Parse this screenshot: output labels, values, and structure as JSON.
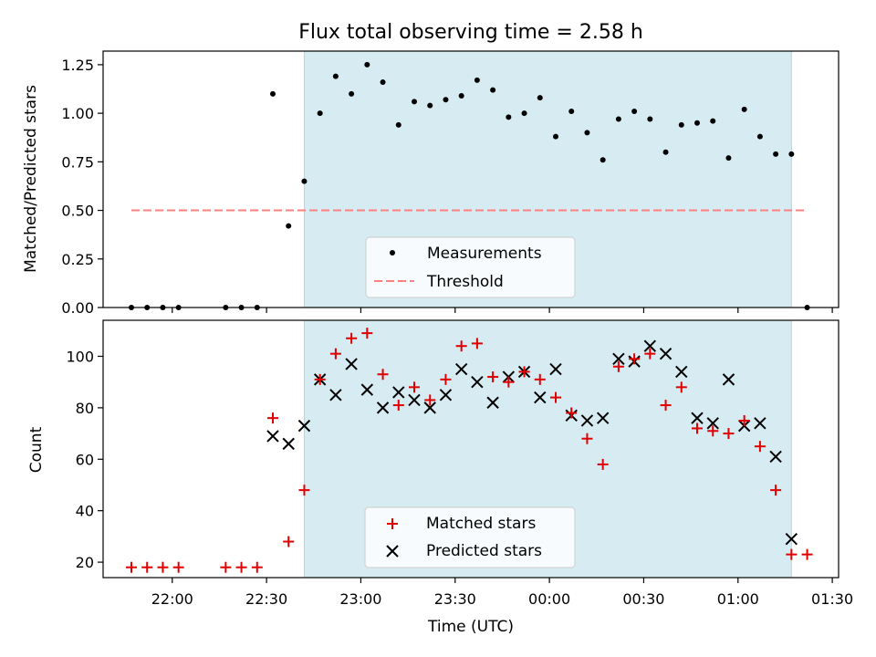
{
  "colors": {
    "measurement": "#000000",
    "threshold": "#ff8080",
    "matched": "#e00000",
    "predicted": "#000000",
    "shaded_region": "#add8e6"
  },
  "chart_data": [
    {
      "type": "scatter",
      "title": "Flux total observing time = 2.58 h",
      "xlabel": "",
      "ylabel": "Matched/Predicted stars",
      "ylim": [
        0,
        1.32
      ],
      "yticks": [
        "0.00",
        "0.25",
        "0.50",
        "0.75",
        "1.00",
        "1.25"
      ],
      "xlim": [
        "21:38",
        "23:58+1:32"
      ],
      "shaded_span": [
        "22:42",
        "01:17"
      ],
      "legend_position": "lower center",
      "series": [
        {
          "name": "Measurements",
          "kind": "points",
          "x": [
            "21:47",
            "21:52",
            "21:57",
            "22:02",
            "22:17",
            "22:22",
            "22:27",
            "22:32",
            "22:37",
            "22:42",
            "22:47",
            "22:52",
            "22:57",
            "23:02",
            "23:07",
            "23:12",
            "23:17",
            "23:22",
            "23:27",
            "23:32",
            "23:37",
            "23:42",
            "23:47",
            "23:52",
            "23:57",
            "00:02",
            "00:07",
            "00:12",
            "00:17",
            "00:22",
            "00:27",
            "00:32",
            "00:37",
            "00:42",
            "00:47",
            "00:52",
            "00:57",
            "01:02",
            "01:07",
            "01:12",
            "01:17",
            "01:22"
          ],
          "y": [
            0,
            0,
            0,
            0,
            0,
            0,
            0,
            1.1,
            0.42,
            0.65,
            1.0,
            1.19,
            1.1,
            1.25,
            1.16,
            0.94,
            1.06,
            1.04,
            1.07,
            1.09,
            1.17,
            1.12,
            0.98,
            1.0,
            1.08,
            0.88,
            1.01,
            0.9,
            0.76,
            0.97,
            1.01,
            0.97,
            0.8,
            0.94,
            0.95,
            0.96,
            0.77,
            1.02,
            0.88,
            0.79,
            0.79,
            0.0
          ]
        },
        {
          "name": "Threshold",
          "kind": "dashed-line",
          "x": [
            "21:47",
            "01:22"
          ],
          "y": [
            0.5,
            0.5
          ]
        }
      ]
    },
    {
      "type": "scatter",
      "title": "",
      "xlabel": "Time (UTC)",
      "ylabel": "Count",
      "ylim": [
        14,
        114
      ],
      "yticks": [
        "20",
        "40",
        "60",
        "80",
        "100"
      ],
      "xticks": [
        "22:00",
        "22:30",
        "23:00",
        "23:30",
        "00:00",
        "00:30",
        "01:00",
        "01:30"
      ],
      "shaded_span": [
        "22:42",
        "01:17"
      ],
      "legend_position": "lower center",
      "series": [
        {
          "name": "Matched stars",
          "marker": "+",
          "x": [
            "21:47",
            "21:52",
            "21:57",
            "22:02",
            "22:17",
            "22:22",
            "22:27",
            "22:32",
            "22:37",
            "22:42",
            "22:47",
            "22:52",
            "22:57",
            "23:02",
            "23:07",
            "23:12",
            "23:17",
            "23:22",
            "23:27",
            "23:32",
            "23:37",
            "23:42",
            "23:47",
            "23:52",
            "23:57",
            "00:02",
            "00:07",
            "00:12",
            "00:17",
            "00:22",
            "00:27",
            "00:32",
            "00:37",
            "00:42",
            "00:47",
            "00:52",
            "00:57",
            "01:02",
            "01:07",
            "01:12",
            "01:17",
            "01:22"
          ],
          "y": [
            18,
            18,
            18,
            18,
            18,
            18,
            18,
            76,
            28,
            48,
            91,
            101,
            107,
            109,
            93,
            81,
            88,
            83,
            91,
            104,
            105,
            92,
            90,
            94,
            91,
            84,
            78,
            68,
            58,
            96,
            99,
            101,
            81,
            88,
            72,
            71,
            70,
            75,
            65,
            48,
            23,
            23
          ]
        },
        {
          "name": "Predicted stars",
          "marker": "x",
          "x": [
            "22:32",
            "22:37",
            "22:42",
            "22:47",
            "22:52",
            "22:57",
            "23:02",
            "23:07",
            "23:12",
            "23:17",
            "23:22",
            "23:27",
            "23:32",
            "23:37",
            "23:42",
            "23:47",
            "23:52",
            "23:57",
            "00:02",
            "00:07",
            "00:12",
            "00:17",
            "00:22",
            "00:27",
            "00:32",
            "00:37",
            "00:42",
            "00:47",
            "00:52",
            "00:57",
            "01:02",
            "01:07",
            "01:12",
            "01:17"
          ],
          "y": [
            69,
            66,
            73,
            91,
            85,
            97,
            87,
            80,
            86,
            83,
            80,
            85,
            95,
            90,
            82,
            92,
            94,
            84,
            95,
            77,
            75,
            76,
            99,
            98,
            104,
            101,
            94,
            76,
            74,
            91,
            73,
            74,
            61,
            29
          ]
        }
      ]
    }
  ]
}
